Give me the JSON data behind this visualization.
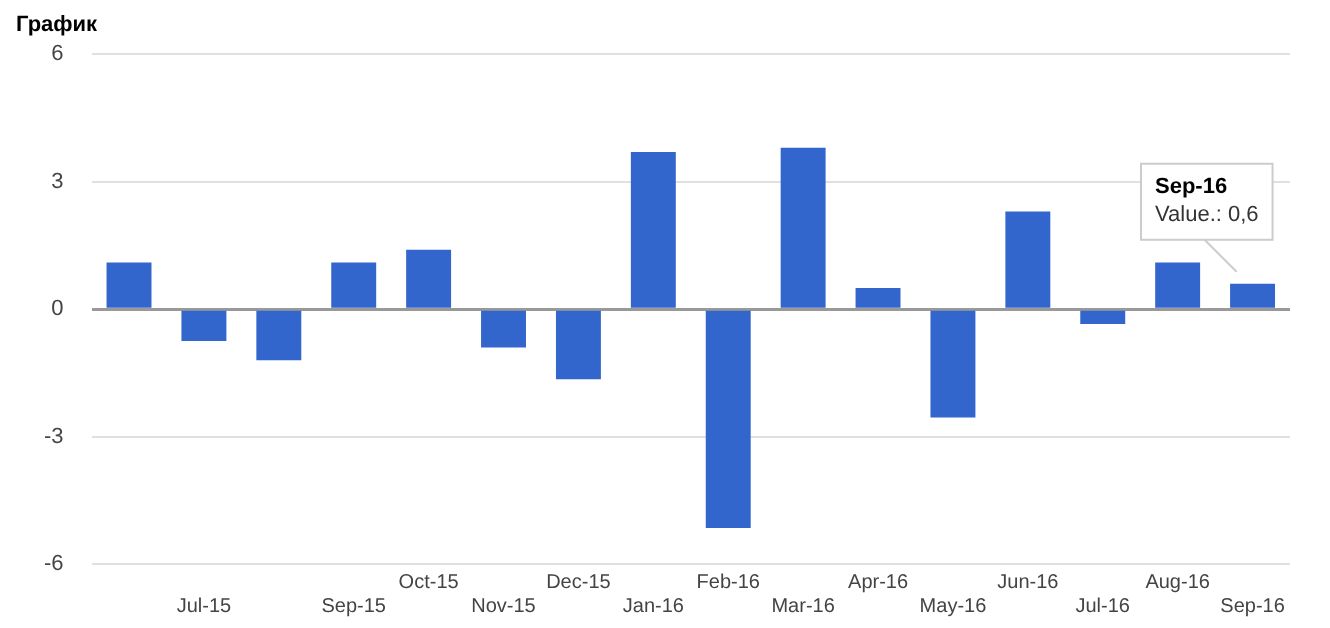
{
  "chart_data": {
    "type": "bar",
    "title": "График",
    "categories": [
      null,
      "Jul-15",
      null,
      "Sep-15",
      "Oct-15",
      "Nov-15",
      "Dec-15",
      "Jan-16",
      "Feb-16",
      "Mar-16",
      "Apr-16",
      "May-16",
      "Jun-16",
      "Jul-16",
      "Aug-16",
      "Sep-16"
    ],
    "values": [
      1.1,
      -0.75,
      -1.2,
      1.1,
      1.4,
      -0.9,
      -1.65,
      3.7,
      -5.15,
      3.8,
      0.5,
      -2.55,
      2.3,
      -0.35,
      1.1,
      0.6
    ],
    "color": "#3366cc",
    "ylim": [
      -6,
      6
    ],
    "yticks": [
      -6,
      -3,
      0,
      3,
      6
    ],
    "grid": "y",
    "legend": false,
    "annotations": [
      {
        "text": "Sep-16\nValue.: 0,6",
        "x": "Sep-16",
        "y": 0.6
      }
    ]
  }
}
